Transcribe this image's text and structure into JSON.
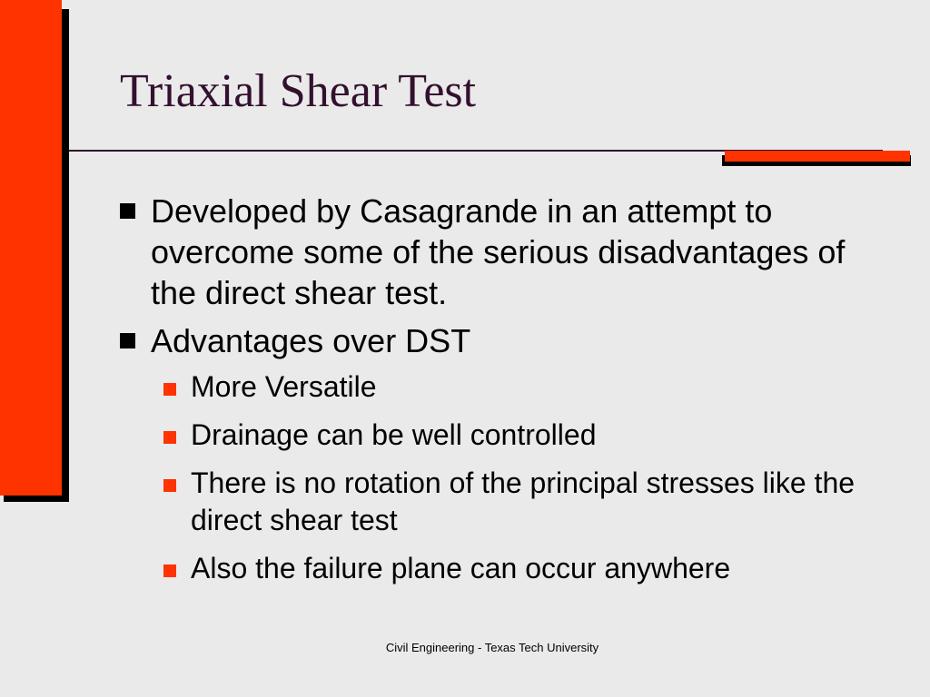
{
  "slide": {
    "title": "Triaxial Shear Test",
    "bullets": [
      {
        "text": "Developed by Casagrande in an attempt to overcome some of the serious disadvantages of the direct shear test."
      },
      {
        "text": "Advantages over DST",
        "sub_bullets": [
          "More Versatile",
          "Drainage can be well controlled",
          "There is no rotation of the principal stresses like the direct shear test",
          "Also the failure plane can occur anywhere"
        ]
      }
    ],
    "footer": "Civil Engineering - Texas Tech University"
  },
  "colors": {
    "background": "#eaeaea",
    "accent": "#ff3300",
    "title": "#33102e",
    "text": "#000000"
  },
  "icons": {
    "level1_bullet": "black-square-icon",
    "level2_bullet": "orange-square-icon"
  }
}
